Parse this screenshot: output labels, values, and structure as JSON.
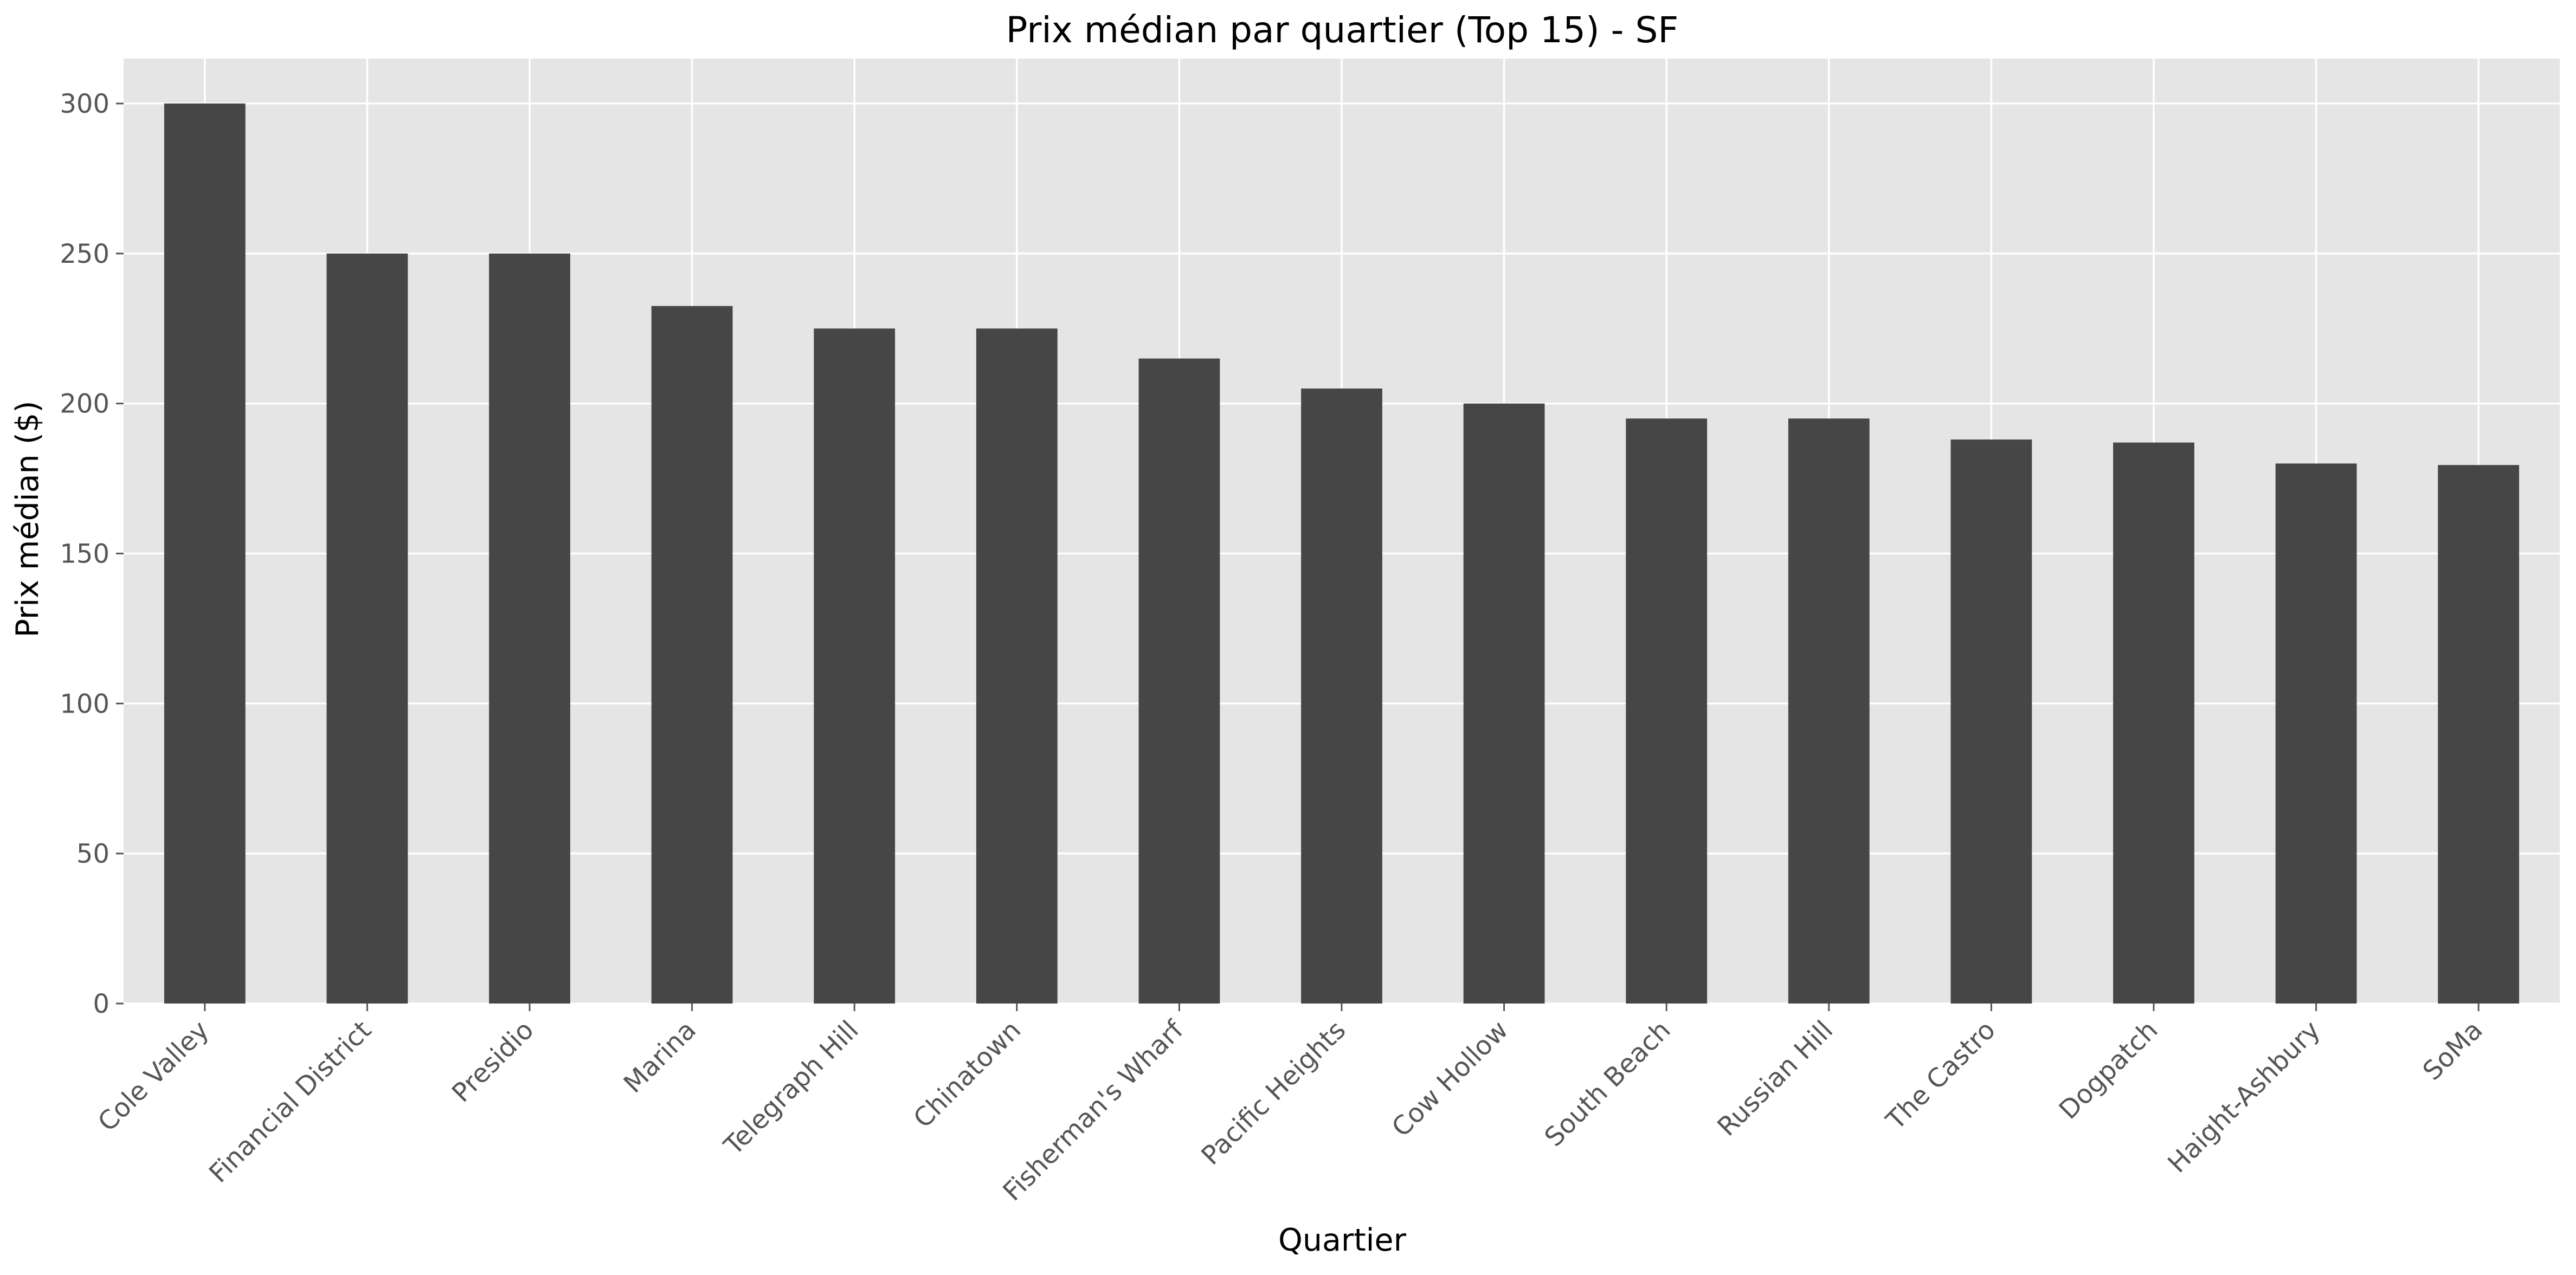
{
  "chart_data": {
    "type": "bar",
    "title": "Prix médian par quartier (Top 15) - SF",
    "xlabel": "Quartier",
    "ylabel": "Prix médian ($)",
    "categories": [
      "Cole Valley",
      "Financial District",
      "Presidio",
      "Marina",
      "Telegraph Hill",
      "Chinatown",
      "Fisherman's Wharf",
      "Pacific Heights",
      "Cow Hollow",
      "South Beach",
      "Russian Hill",
      "The Castro",
      "Dogpatch",
      "Haight-Ashbury",
      "SoMa"
    ],
    "values": [
      300,
      250,
      250,
      232.5,
      225,
      225,
      215,
      205,
      200,
      195,
      195,
      188,
      187,
      180,
      179.5
    ],
    "ylim": [
      0,
      315
    ],
    "yticks": [
      0,
      50,
      100,
      150,
      200,
      250,
      300
    ],
    "grid": true,
    "legend": "none",
    "colors": {
      "bar": "#464646",
      "plot_background": "#e5e5e5",
      "grid": "#ffffff",
      "text": "#000000",
      "tick_text": "#555555",
      "tick_mark": "#555555"
    }
  }
}
